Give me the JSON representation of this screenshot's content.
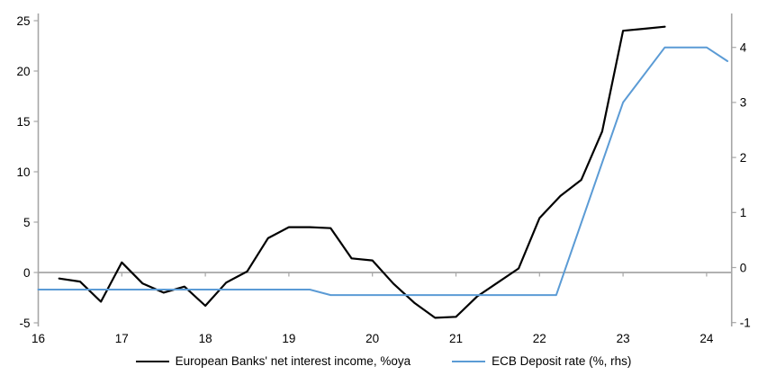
{
  "chart_data": {
    "type": "line",
    "title": "",
    "x_axis": {
      "tick_labels": [
        "16",
        "17",
        "18",
        "19",
        "20",
        "21",
        "22",
        "23",
        "24"
      ],
      "tick_values": [
        16,
        17,
        18,
        19,
        20,
        21,
        22,
        23,
        24
      ],
      "range": [
        16,
        24.3
      ],
      "ticks_on_zero_line": true
    },
    "left_axis": {
      "tick_values": [
        -5,
        0,
        5,
        10,
        15,
        20,
        25
      ],
      "range": [
        -5,
        25
      ]
    },
    "right_axis": {
      "tick_values": [
        -1,
        0,
        1,
        2,
        3,
        4
      ],
      "range": [
        -1.08,
        4.62
      ]
    },
    "grid": "zero-line-only",
    "zero_line_color": "#a6a6a6",
    "axis_color": "#a6a6a6",
    "series": [
      {
        "name": "European Banks' net interest income, %oya",
        "axis": "left",
        "color": "#000000",
        "stroke_width": 2.2,
        "x": [
          16.25,
          16.5,
          16.75,
          17.0,
          17.25,
          17.5,
          17.75,
          18.0,
          18.25,
          18.5,
          18.75,
          19.0,
          19.25,
          19.5,
          19.75,
          20.0,
          20.25,
          20.5,
          20.75,
          21.0,
          21.25,
          21.5,
          21.75,
          22.0,
          22.25,
          22.5,
          22.75,
          23.0,
          23.25,
          23.5
        ],
        "y": [
          -0.6,
          -0.9,
          -2.9,
          1.0,
          -1.1,
          -2.0,
          -1.4,
          -3.3,
          -1.0,
          0.1,
          3.4,
          4.5,
          4.5,
          4.4,
          1.4,
          1.2,
          -1.1,
          -3.0,
          -4.5,
          -4.4,
          -2.4,
          -1.0,
          0.4,
          5.4,
          7.6,
          9.2,
          14.0,
          24.0,
          24.2,
          24.4
        ]
      },
      {
        "name": "ECB Deposit rate (%, rhs)",
        "axis": "right",
        "color": "#5b9bd5",
        "stroke_width": 2,
        "x": [
          16.0,
          19.25,
          19.5,
          22.2,
          23.0,
          23.5,
          24.0,
          24.25
        ],
        "y": [
          -0.4,
          -0.4,
          -0.5,
          -0.5,
          3.0,
          4.0,
          4.0,
          3.75
        ]
      }
    ],
    "legend": {
      "position": "bottom-center",
      "entries": [
        "European Banks' net interest income, %oya",
        "ECB Deposit rate (%, rhs)"
      ]
    }
  }
}
